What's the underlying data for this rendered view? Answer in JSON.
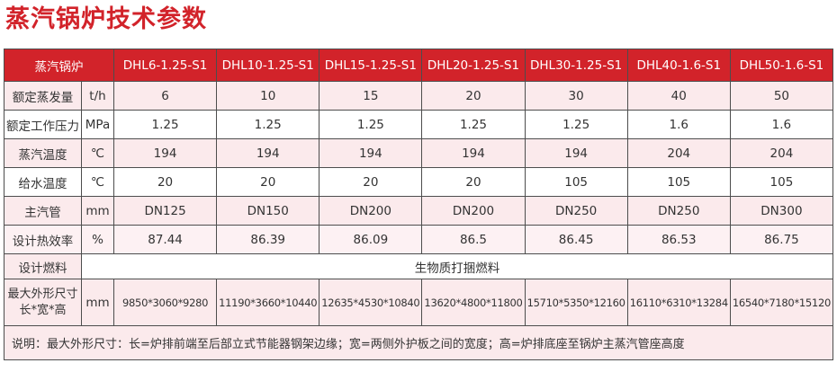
{
  "title": "蒸汽锅炉技术参数",
  "table": {
    "corner_header": "蒸汽锅炉",
    "models": [
      "DHL6-1.25-S1",
      "DHL10-1.25-S1",
      "DHL15-1.25-S1",
      "DHL20-1.25-S1",
      "DHL30-1.25-S1",
      "DHL40-1.6-S1",
      "DHL50-1.6-S1"
    ],
    "rows": [
      {
        "label": "额定蒸发量",
        "unit": "t/h",
        "values": [
          "6",
          "10",
          "15",
          "20",
          "30",
          "40",
          "50"
        ]
      },
      {
        "label": "额定工作压力",
        "unit": "MPa",
        "values": [
          "1.25",
          "1.25",
          "1.25",
          "1.25",
          "1.25",
          "1.6",
          "1.6"
        ]
      },
      {
        "label": "蒸汽温度",
        "unit": "℃",
        "values": [
          "194",
          "194",
          "194",
          "194",
          "194",
          "204",
          "204"
        ]
      },
      {
        "label": "给水温度",
        "unit": "℃",
        "values": [
          "20",
          "20",
          "20",
          "20",
          "105",
          "105",
          "105"
        ]
      },
      {
        "label": "主汽管",
        "unit": "mm",
        "values": [
          "DN125",
          "DN150",
          "DN200",
          "DN200",
          "DN250",
          "DN250",
          "DN300"
        ]
      },
      {
        "label": "设计热效率",
        "unit": "%",
        "values": [
          "87.44",
          "86.39",
          "86.09",
          "86.5",
          "86.45",
          "86.53",
          "86.75"
        ]
      }
    ],
    "fuel_row": {
      "label": "设计燃料",
      "value": "生物质打捆燃料"
    },
    "dimensions_row": {
      "label_line1": "最大外形尺寸",
      "label_line2": "长*宽*高",
      "unit": "mm",
      "values": [
        "9850*3060*9280",
        "11190*3660*10440",
        "12635*4530*10840",
        "13620*4800*11800",
        "15710*5350*12160",
        "16110*6310*13284",
        "16540*7180*15120"
      ]
    },
    "note": "说明：最大外形尺寸：长=炉排前端至后部立式节能器钢架边缘；宽=两侧外护板之间的宽度；高=炉排底座至锅炉主蒸汽管座高度"
  },
  "colors": {
    "accent_red": "#d2232a",
    "row_pink": "#fbeaec",
    "row_pink_light": "#fdf1f3",
    "border": "#4d4d4d",
    "header_text": "#ffffff"
  }
}
